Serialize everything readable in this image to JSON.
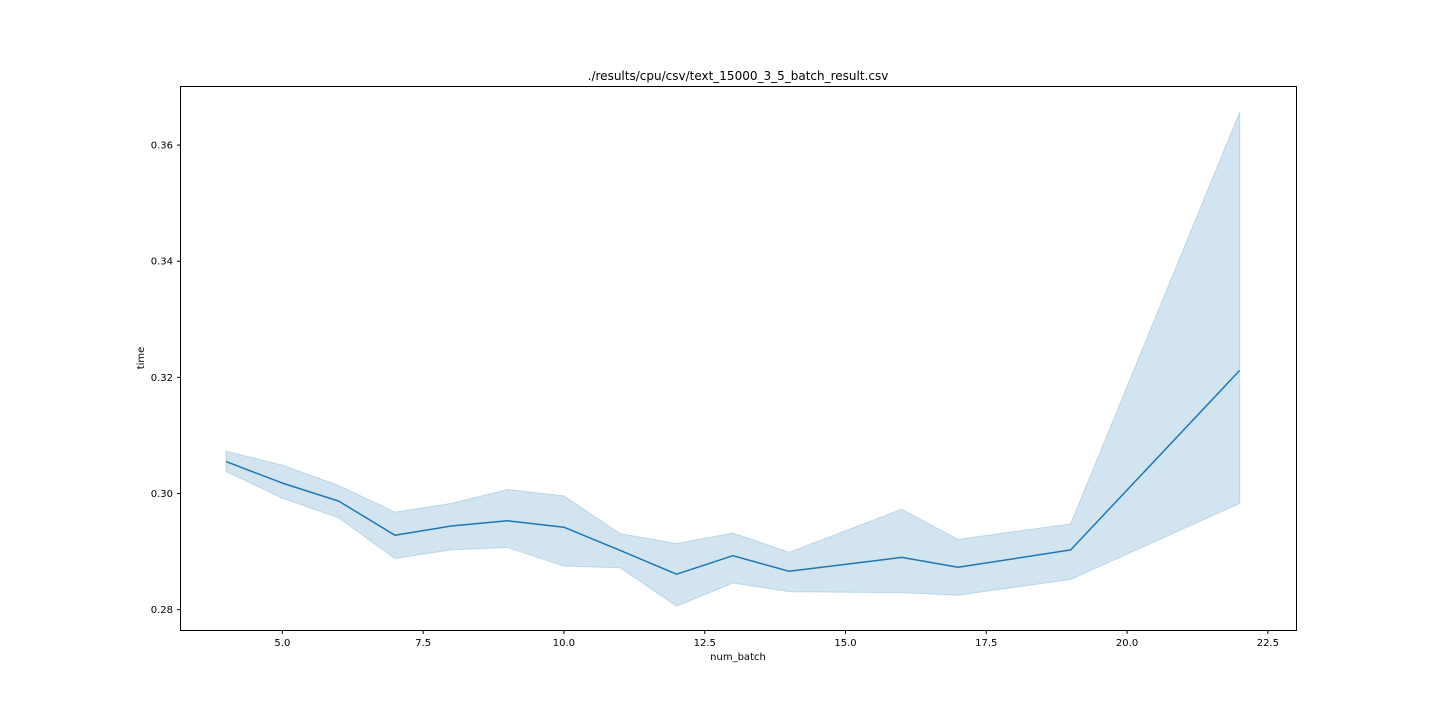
{
  "chart_data": {
    "type": "line",
    "title": "./results/cpu/csv/text_15000_3_5_batch_result.csv",
    "xlabel": "num_batch",
    "ylabel": "time",
    "xlim": [
      3.2,
      23.0
    ],
    "ylim": [
      0.2765,
      0.37
    ],
    "xticks": [
      5.0,
      7.5,
      10.0,
      12.5,
      15.0,
      17.5,
      20.0,
      22.5
    ],
    "xtick_labels": [
      "5.0",
      "7.5",
      "10.0",
      "12.5",
      "15.0",
      "17.5",
      "20.0",
      "22.5"
    ],
    "yticks": [
      0.28,
      0.3,
      0.32,
      0.34,
      0.36
    ],
    "ytick_labels": [
      "0.28",
      "0.30",
      "0.32",
      "0.34",
      "0.36"
    ],
    "grid": false,
    "line_color": "#1f77b4",
    "band_color": "#1f77b4",
    "series": [
      {
        "x": [
          4,
          5,
          6,
          7,
          8,
          9,
          10,
          11,
          12,
          13,
          14,
          16,
          17,
          19,
          22
        ],
        "y": [
          0.3055,
          0.3018,
          0.2987,
          0.2928,
          0.2944,
          0.2953,
          0.2942,
          0.2902,
          0.2861,
          0.2893,
          0.2866,
          0.289,
          0.2873,
          0.2903,
          0.3212
        ],
        "ci_lower": [
          0.3038,
          0.2992,
          0.2958,
          0.2888,
          0.2903,
          0.2907,
          0.2875,
          0.2872,
          0.2806,
          0.2846,
          0.2831,
          0.2829,
          0.2825,
          0.2852,
          0.2983
        ],
        "ci_upper": [
          0.3073,
          0.3049,
          0.3014,
          0.2968,
          0.2983,
          0.3007,
          0.2996,
          0.2931,
          0.2914,
          0.2932,
          0.2899,
          0.2973,
          0.2921,
          0.2948,
          0.3657
        ]
      }
    ]
  }
}
